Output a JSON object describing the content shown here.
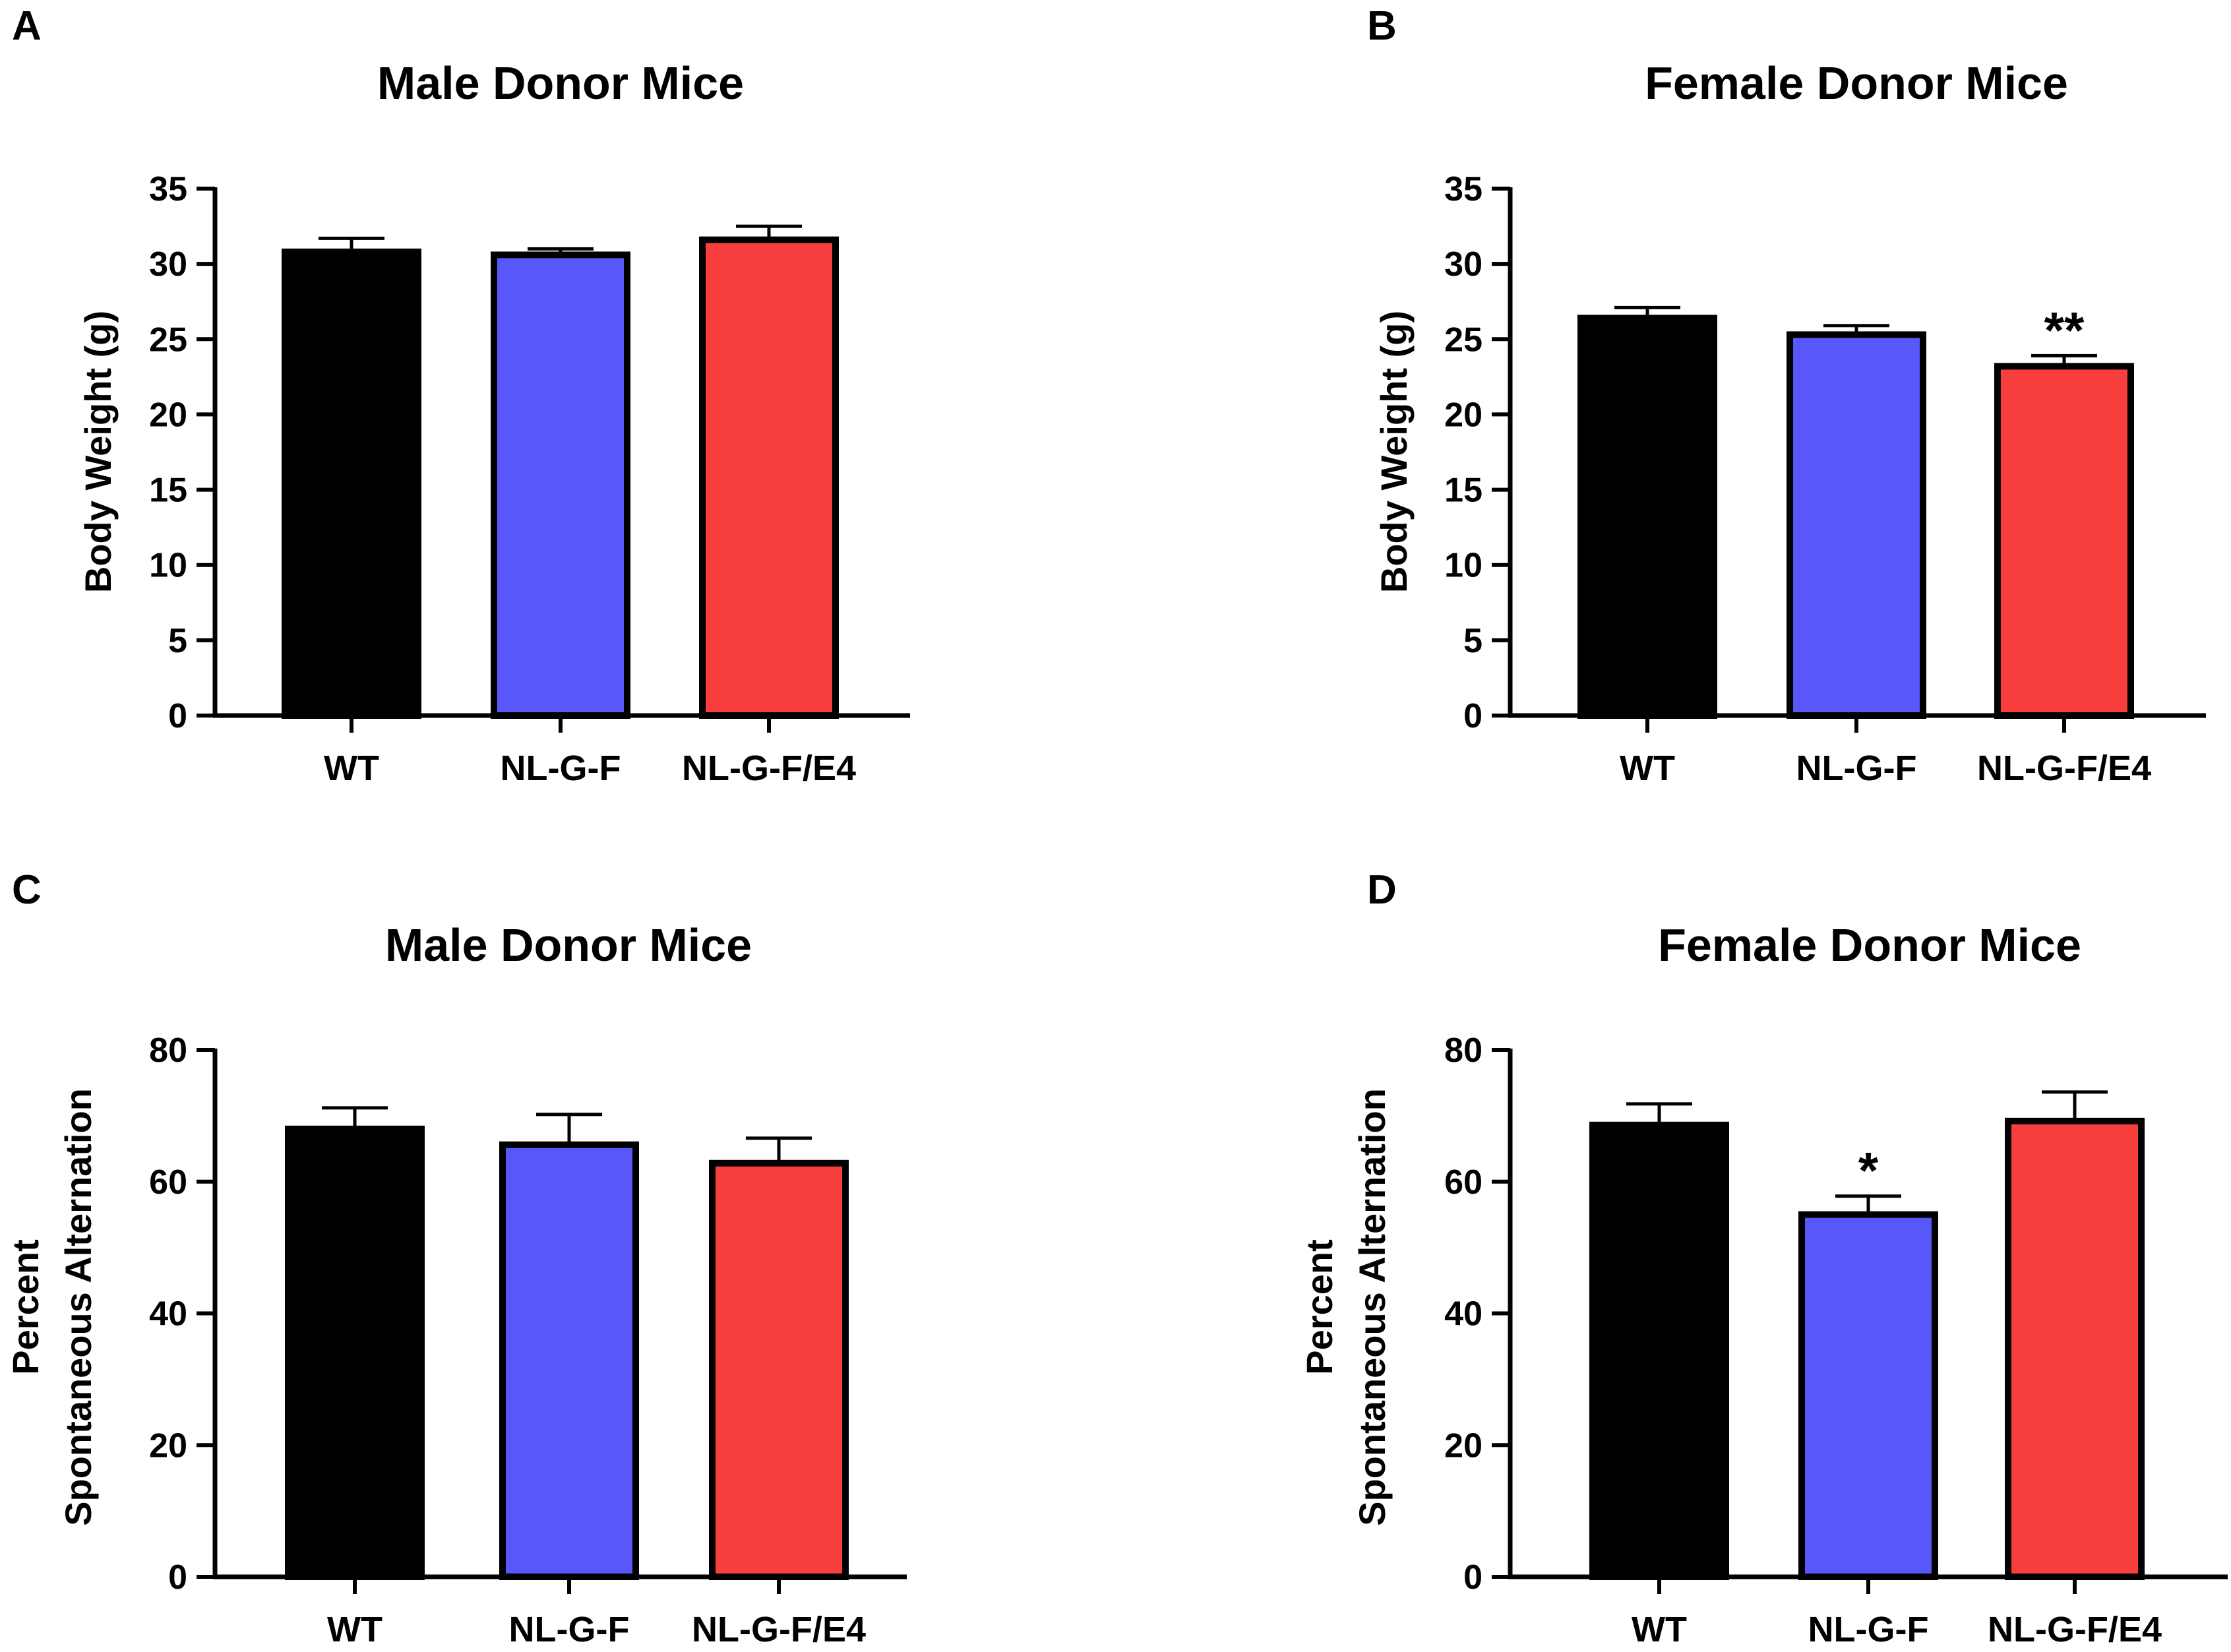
{
  "chart_data": [
    {
      "panel": "A",
      "type": "bar",
      "title": "Male Donor Mice",
      "ylabel": [
        "Body Weight (g)"
      ],
      "xlabel": "",
      "categories": [
        "WT",
        "NL-G-F",
        "NL-G-F/E4"
      ],
      "values": [
        30.8,
        30.6,
        31.6
      ],
      "errors": [
        0.9,
        0.4,
        0.9
      ],
      "colors": [
        "#000000",
        "#5757fa",
        "#f93e3e"
      ],
      "significance": [
        "",
        "",
        ""
      ],
      "ylim": [
        0,
        35
      ],
      "yticks": [
        0,
        5,
        10,
        15,
        20,
        25,
        30,
        35
      ],
      "ytick_labels": [
        "0",
        "5",
        "10",
        "15",
        "20",
        "25",
        "30",
        "35"
      ]
    },
    {
      "panel": "B",
      "type": "bar",
      "title": "Female Donor Mice",
      "ylabel": [
        "Body Weight (g)"
      ],
      "xlabel": "",
      "categories": [
        "WT",
        "NL-G-F",
        "NL-G-F/E4"
      ],
      "values": [
        26.4,
        25.3,
        23.2
      ],
      "errors": [
        0.7,
        0.6,
        0.7
      ],
      "colors": [
        "#000000",
        "#5757fa",
        "#f93e3e"
      ],
      "significance": [
        "",
        "",
        "**"
      ],
      "ylim": [
        0,
        35
      ],
      "yticks": [
        0,
        5,
        10,
        15,
        20,
        25,
        30,
        35
      ],
      "ytick_labels": [
        "0",
        "5",
        "10",
        "15",
        "20",
        "25",
        "30",
        "35"
      ]
    },
    {
      "panel": "C",
      "type": "bar",
      "title": "Male Donor Mice",
      "ylabel": [
        "Percent",
        "Spontaneous Alternation"
      ],
      "xlabel": "",
      "categories": [
        "WT",
        "NL-G-F",
        "NL-G-F/E4"
      ],
      "values": [
        68,
        65.6,
        62.8
      ],
      "errors": [
        3.2,
        4.6,
        3.8
      ],
      "colors": [
        "#000000",
        "#5757fa",
        "#f93e3e"
      ],
      "significance": [
        "",
        "",
        ""
      ],
      "ylim": [
        0,
        80
      ],
      "yticks": [
        0,
        20,
        40,
        60,
        80
      ],
      "ytick_labels": [
        "0",
        "20",
        "40",
        "60",
        "80"
      ]
    },
    {
      "panel": "D",
      "type": "bar",
      "title": "Female Donor Mice",
      "ylabel": [
        "Percent",
        "Spontaneous Alternation"
      ],
      "xlabel": "",
      "categories": [
        "WT",
        "NL-G-F",
        "NL-G-F/E4"
      ],
      "values": [
        68.6,
        55,
        69.2
      ],
      "errors": [
        3.2,
        2.8,
        4.4
      ],
      "colors": [
        "#000000",
        "#5757fa",
        "#f93e3e"
      ],
      "significance": [
        "",
        "*",
        ""
      ],
      "ylim": [
        0,
        80
      ],
      "yticks": [
        0,
        20,
        40,
        60,
        80
      ],
      "ytick_labels": [
        "0",
        "20",
        "40",
        "60",
        "80"
      ]
    }
  ]
}
